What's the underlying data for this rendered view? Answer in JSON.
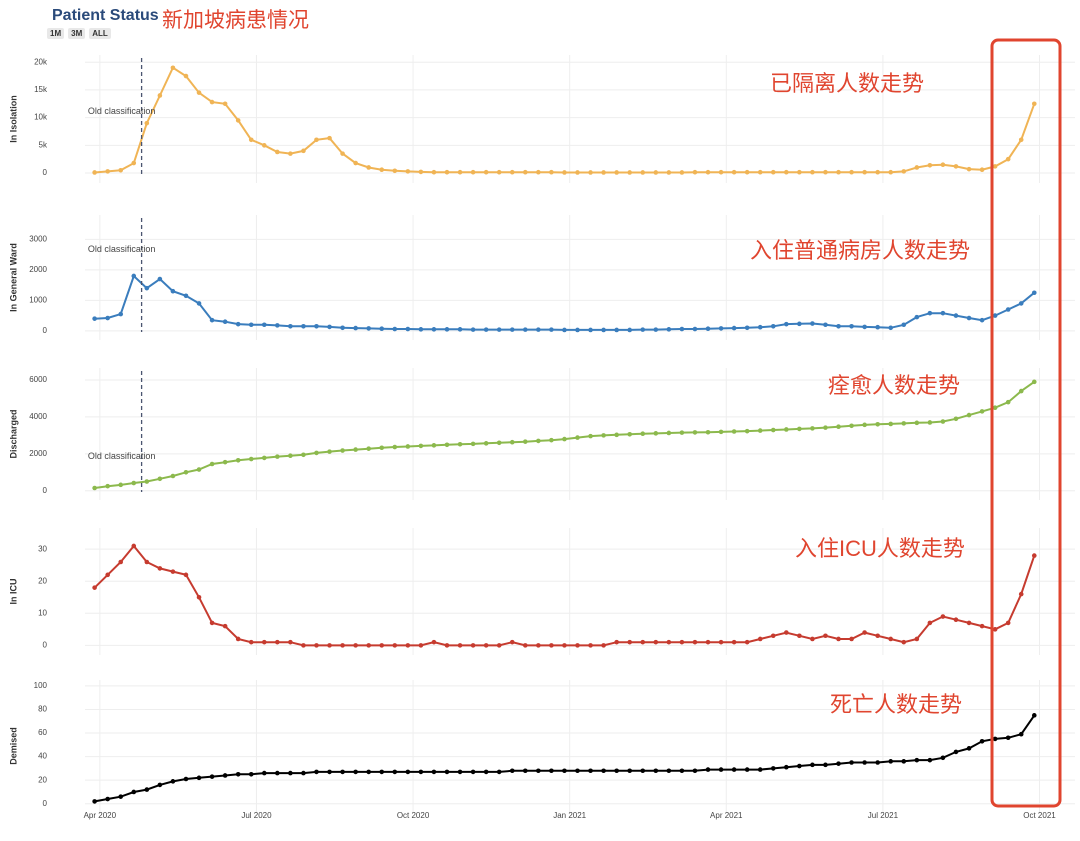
{
  "title": "Patient Status",
  "subtitle": "新加坡病患情况",
  "buttons": [
    "1M",
    "3M",
    "ALL"
  ],
  "chart_data": [
    {
      "type": "line",
      "ylabel": "In Isolation",
      "color": "#f0b455",
      "note": "已隔离人数走势",
      "annotation": {
        "text": "Old classification",
        "x": 0.8
      },
      "ylim": [
        -1800,
        21300
      ],
      "yticks": [
        0,
        {
          "value": 5000,
          "label": "5k"
        },
        {
          "value": 10000,
          "label": "10k"
        },
        {
          "value": 15000,
          "label": "15k"
        },
        {
          "value": 20000,
          "label": "20k"
        }
      ],
      "x": [
        -0.1,
        0.15,
        0.4,
        0.65,
        0.9,
        1.15,
        1.4,
        1.65,
        1.9,
        2.15,
        2.4,
        2.65,
        2.9,
        3.15,
        3.4,
        3.65,
        3.9,
        4.15,
        4.4,
        4.65,
        4.9,
        5.15,
        5.4,
        5.65,
        5.9,
        6.15,
        6.4,
        6.65,
        6.9,
        7.15,
        7.4,
        7.65,
        7.9,
        8.15,
        8.4,
        8.65,
        8.9,
        9.15,
        9.4,
        9.65,
        9.9,
        10.15,
        10.4,
        10.65,
        10.9,
        11.15,
        11.4,
        11.65,
        11.9,
        12.15,
        12.4,
        12.65,
        12.9,
        13.15,
        13.4,
        13.65,
        13.9,
        14.15,
        14.4,
        14.65,
        14.9,
        15.15,
        15.4,
        15.65,
        15.9,
        16.15,
        16.4,
        16.65,
        16.9,
        17.15,
        17.4,
        17.65,
        17.9
      ],
      "values": [
        100,
        300,
        500,
        1800,
        9000,
        14000,
        19000,
        17500,
        14500,
        12800,
        12500,
        9500,
        6000,
        5000,
        3800,
        3500,
        4000,
        6000,
        6300,
        3500,
        1800,
        1000,
        600,
        400,
        300,
        200,
        150,
        150,
        150,
        150,
        150,
        150,
        150,
        150,
        150,
        150,
        100,
        100,
        100,
        100,
        100,
        100,
        100,
        100,
        100,
        100,
        150,
        150,
        150,
        150,
        150,
        150,
        150,
        150,
        150,
        150,
        150,
        150,
        150,
        150,
        150,
        150,
        300,
        1000,
        1400,
        1500,
        1200,
        700,
        600,
        1200,
        2500,
        6000,
        12500
      ]
    },
    {
      "type": "line",
      "ylabel": "In General Ward",
      "color": "#3a7dbd",
      "note": "入住普通病房人数走势",
      "annotation": {
        "text": "Old classification",
        "x": 0.8
      },
      "ylim": [
        -300,
        3800
      ],
      "yticks": [
        0,
        1000,
        2000,
        3000
      ],
      "x": [
        -0.1,
        0.15,
        0.4,
        0.65,
        0.9,
        1.15,
        1.4,
        1.65,
        1.9,
        2.15,
        2.4,
        2.65,
        2.9,
        3.15,
        3.4,
        3.65,
        3.9,
        4.15,
        4.4,
        4.65,
        4.9,
        5.15,
        5.4,
        5.65,
        5.9,
        6.15,
        6.4,
        6.65,
        6.9,
        7.15,
        7.4,
        7.65,
        7.9,
        8.15,
        8.4,
        8.65,
        8.9,
        9.15,
        9.4,
        9.65,
        9.9,
        10.15,
        10.4,
        10.65,
        10.9,
        11.15,
        11.4,
        11.65,
        11.9,
        12.15,
        12.4,
        12.65,
        12.9,
        13.15,
        13.4,
        13.65,
        13.9,
        14.15,
        14.4,
        14.65,
        14.9,
        15.15,
        15.4,
        15.65,
        15.9,
        16.15,
        16.4,
        16.65,
        16.9,
        17.15,
        17.4,
        17.65,
        17.9
      ],
      "values": [
        400,
        420,
        550,
        1800,
        1400,
        1700,
        1300,
        1150,
        900,
        350,
        300,
        220,
        200,
        200,
        180,
        150,
        150,
        150,
        130,
        100,
        90,
        80,
        70,
        60,
        60,
        50,
        50,
        50,
        50,
        40,
        40,
        40,
        40,
        40,
        40,
        40,
        30,
        30,
        30,
        30,
        30,
        30,
        40,
        40,
        50,
        60,
        60,
        70,
        80,
        90,
        100,
        120,
        150,
        220,
        230,
        240,
        200,
        150,
        150,
        130,
        120,
        100,
        200,
        450,
        580,
        580,
        500,
        420,
        350,
        500,
        700,
        900,
        1250
      ]
    },
    {
      "type": "line",
      "ylabel": "Discharged",
      "color": "#8cb94d",
      "note": "痊愈人数走势",
      "annotation": {
        "text": "Old classification",
        "x": 0.8
      },
      "ylim": [
        -500,
        6650
      ],
      "yticks": [
        0,
        2000,
        4000,
        6000
      ],
      "x": [
        -0.1,
        0.15,
        0.4,
        0.65,
        0.9,
        1.15,
        1.4,
        1.65,
        1.9,
        2.15,
        2.4,
        2.65,
        2.9,
        3.15,
        3.4,
        3.65,
        3.9,
        4.15,
        4.4,
        4.65,
        4.9,
        5.15,
        5.4,
        5.65,
        5.9,
        6.15,
        6.4,
        6.65,
        6.9,
        7.15,
        7.4,
        7.65,
        7.9,
        8.15,
        8.4,
        8.65,
        8.9,
        9.15,
        9.4,
        9.65,
        9.9,
        10.15,
        10.4,
        10.65,
        10.9,
        11.15,
        11.4,
        11.65,
        11.9,
        12.15,
        12.4,
        12.65,
        12.9,
        13.15,
        13.4,
        13.65,
        13.9,
        14.15,
        14.4,
        14.65,
        14.9,
        15.15,
        15.4,
        15.65,
        15.9,
        16.15,
        16.4,
        16.65,
        16.9,
        17.15,
        17.4,
        17.65,
        17.9
      ],
      "values": [
        150,
        250,
        320,
        420,
        500,
        650,
        800,
        1000,
        1150,
        1450,
        1550,
        1650,
        1720,
        1780,
        1850,
        1900,
        1950,
        2050,
        2120,
        2180,
        2230,
        2280,
        2330,
        2370,
        2400,
        2430,
        2460,
        2490,
        2520,
        2540,
        2570,
        2600,
        2630,
        2660,
        2700,
        2740,
        2800,
        2880,
        2960,
        3000,
        3030,
        3060,
        3090,
        3110,
        3130,
        3150,
        3160,
        3170,
        3190,
        3210,
        3230,
        3260,
        3290,
        3320,
        3350,
        3380,
        3420,
        3470,
        3520,
        3570,
        3600,
        3620,
        3650,
        3680,
        3700,
        3750,
        3900,
        4100,
        4300,
        4500,
        4800,
        5400,
        5900
      ]
    },
    {
      "type": "line",
      "ylabel": "In ICU",
      "color": "#c63b2f",
      "note": "入住ICU人数走势",
      "ylim": [
        -3,
        36.6
      ],
      "yticks": [
        0,
        10,
        20,
        30
      ],
      "x": [
        -0.1,
        0.15,
        0.4,
        0.65,
        0.9,
        1.15,
        1.4,
        1.65,
        1.9,
        2.15,
        2.4,
        2.65,
        2.9,
        3.15,
        3.4,
        3.65,
        3.9,
        4.15,
        4.4,
        4.65,
        4.9,
        5.15,
        5.4,
        5.65,
        5.9,
        6.15,
        6.4,
        6.65,
        6.9,
        7.15,
        7.4,
        7.65,
        7.9,
        8.15,
        8.4,
        8.65,
        8.9,
        9.15,
        9.4,
        9.65,
        9.9,
        10.15,
        10.4,
        10.65,
        10.9,
        11.15,
        11.4,
        11.65,
        11.9,
        12.15,
        12.4,
        12.65,
        12.9,
        13.15,
        13.4,
        13.65,
        13.9,
        14.15,
        14.4,
        14.65,
        14.9,
        15.15,
        15.4,
        15.65,
        15.9,
        16.15,
        16.4,
        16.65,
        16.9,
        17.15,
        17.4,
        17.65,
        17.9
      ],
      "values": [
        18,
        22,
        26,
        31,
        26,
        24,
        23,
        22,
        15,
        7,
        6,
        2,
        1,
        1,
        1,
        1,
        0,
        0,
        0,
        0,
        0,
        0,
        0,
        0,
        0,
        0,
        1,
        0,
        0,
        0,
        0,
        0,
        1,
        0,
        0,
        0,
        0,
        0,
        0,
        0,
        1,
        1,
        1,
        1,
        1,
        1,
        1,
        1,
        1,
        1,
        1,
        2,
        3,
        4,
        3,
        2,
        3,
        2,
        2,
        4,
        3,
        2,
        1,
        2,
        7,
        9,
        8,
        7,
        6,
        5,
        7,
        16,
        28
      ]
    },
    {
      "type": "line",
      "ylabel": "Demised",
      "color": "#000000",
      "note": "死亡人数走势",
      "ylim": [
        -7,
        105
      ],
      "yticks": [
        0,
        20,
        40,
        60,
        80,
        100
      ],
      "xlim": [
        -0.38,
        18.68
      ],
      "xticks": [
        {
          "value": 0,
          "label": "Apr 2020"
        },
        {
          "value": 3,
          "label": "Jul 2020"
        },
        {
          "value": 6,
          "label": "Oct 2020"
        },
        {
          "value": 9,
          "label": "Jan 2021"
        },
        {
          "value": 12,
          "label": "Apr 2021"
        },
        {
          "value": 15,
          "label": "Jul 2021"
        },
        {
          "value": 18,
          "label": "Oct 2021"
        }
      ],
      "x": [
        -0.1,
        0.15,
        0.4,
        0.65,
        0.9,
        1.15,
        1.4,
        1.65,
        1.9,
        2.15,
        2.4,
        2.65,
        2.9,
        3.15,
        3.4,
        3.65,
        3.9,
        4.15,
        4.4,
        4.65,
        4.9,
        5.15,
        5.4,
        5.65,
        5.9,
        6.15,
        6.4,
        6.65,
        6.9,
        7.15,
        7.4,
        7.65,
        7.9,
        8.15,
        8.4,
        8.65,
        8.9,
        9.15,
        9.4,
        9.65,
        9.9,
        10.15,
        10.4,
        10.65,
        10.9,
        11.15,
        11.4,
        11.65,
        11.9,
        12.15,
        12.4,
        12.65,
        12.9,
        13.15,
        13.4,
        13.65,
        13.9,
        14.15,
        14.4,
        14.65,
        14.9,
        15.15,
        15.4,
        15.65,
        15.9,
        16.15,
        16.4,
        16.65,
        16.9,
        17.15,
        17.4,
        17.65,
        17.9
      ],
      "values": [
        2,
        4,
        6,
        10,
        12,
        16,
        19,
        21,
        22,
        23,
        24,
        25,
        25,
        26,
        26,
        26,
        26,
        27,
        27,
        27,
        27,
        27,
        27,
        27,
        27,
        27,
        27,
        27,
        27,
        27,
        27,
        27,
        28,
        28,
        28,
        28,
        28,
        28,
        28,
        28,
        28,
        28,
        28,
        28,
        28,
        28,
        28,
        29,
        29,
        29,
        29,
        29,
        30,
        31,
        32,
        33,
        33,
        34,
        35,
        35,
        35,
        36,
        36,
        37,
        37,
        39,
        44,
        47,
        53,
        55,
        56,
        59,
        75
      ]
    }
  ]
}
